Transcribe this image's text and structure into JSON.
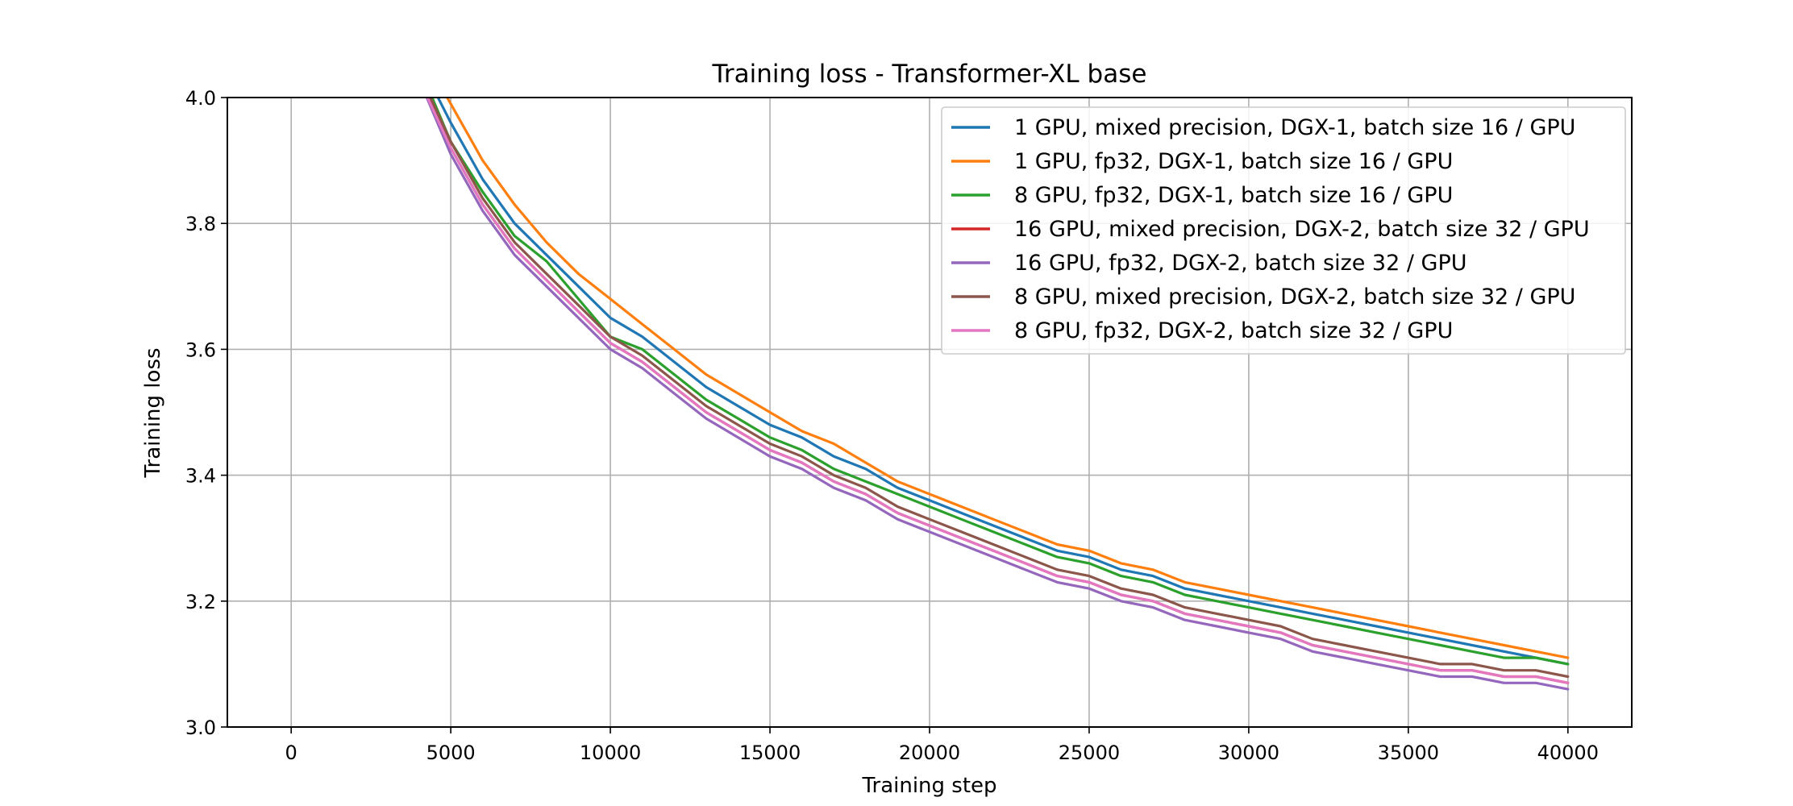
{
  "chart_data": {
    "type": "line",
    "title": "Training loss - Transformer-XL base",
    "xlabel": "Training step",
    "ylabel": "Training loss",
    "xlim": [
      -2000,
      42000
    ],
    "ylim": [
      3.0,
      4.0
    ],
    "xticks": [
      0,
      5000,
      10000,
      15000,
      20000,
      25000,
      30000,
      35000,
      40000
    ],
    "xtick_labels": [
      "0",
      "5000",
      "10000",
      "15000",
      "20000",
      "25000",
      "30000",
      "35000",
      "40000"
    ],
    "yticks": [
      3.0,
      3.2,
      3.4,
      3.6,
      3.8,
      4.0
    ],
    "ytick_labels": [
      "3.0",
      "3.2",
      "3.4",
      "3.6",
      "3.8",
      "4.0"
    ],
    "grid": true,
    "legend_position": "top-right",
    "x": [
      4000,
      5000,
      6000,
      7000,
      8000,
      9000,
      10000,
      11000,
      12000,
      13000,
      14000,
      15000,
      16000,
      17000,
      18000,
      19000,
      20000,
      21000,
      22000,
      23000,
      24000,
      25000,
      26000,
      27000,
      28000,
      29000,
      30000,
      31000,
      32000,
      33000,
      34000,
      35000,
      36000,
      37000,
      38000,
      39000,
      40000
    ],
    "series": [
      {
        "name": "1 GPU, mixed precision, DGX-1, batch size 16 / GPU",
        "color": "#1f77b4",
        "values": [
          4.06,
          3.96,
          3.87,
          3.8,
          3.75,
          3.7,
          3.65,
          3.62,
          3.58,
          3.54,
          3.51,
          3.48,
          3.46,
          3.43,
          3.41,
          3.38,
          3.36,
          3.34,
          3.32,
          3.3,
          3.28,
          3.27,
          3.25,
          3.24,
          3.22,
          3.21,
          3.2,
          3.19,
          3.18,
          3.17,
          3.16,
          3.15,
          3.14,
          3.13,
          3.12,
          3.11,
          3.1
        ]
      },
      {
        "name": "1 GPU, fp32, DGX-1, batch size 16 / GPU",
        "color": "#ff7f0e",
        "values": [
          4.08,
          3.99,
          3.9,
          3.83,
          3.77,
          3.72,
          3.68,
          3.64,
          3.6,
          3.56,
          3.53,
          3.5,
          3.47,
          3.45,
          3.42,
          3.39,
          3.37,
          3.35,
          3.33,
          3.31,
          3.29,
          3.28,
          3.26,
          3.25,
          3.23,
          3.22,
          3.21,
          3.2,
          3.19,
          3.18,
          3.17,
          3.16,
          3.15,
          3.14,
          3.13,
          3.12,
          3.11
        ]
      },
      {
        "name": "8 GPU, fp32, DGX-1, batch size 16 / GPU",
        "color": "#2ca02c",
        "values": [
          4.05,
          3.93,
          3.85,
          3.78,
          3.74,
          3.68,
          3.62,
          3.6,
          3.56,
          3.52,
          3.49,
          3.46,
          3.44,
          3.41,
          3.39,
          3.37,
          3.35,
          3.33,
          3.31,
          3.29,
          3.27,
          3.26,
          3.24,
          3.23,
          3.21,
          3.2,
          3.19,
          3.18,
          3.17,
          3.16,
          3.15,
          3.14,
          3.13,
          3.12,
          3.11,
          3.11,
          3.1
        ]
      },
      {
        "name": "16 GPU, mixed precision, DGX-2, batch size 32 / GPU",
        "color": "#d62728",
        "values": [
          4.04,
          3.92,
          3.83,
          3.76,
          3.71,
          3.66,
          3.61,
          3.58,
          3.54,
          3.5,
          3.47,
          3.44,
          3.42,
          3.39,
          3.37,
          3.34,
          3.32,
          3.3,
          3.28,
          3.26,
          3.24,
          3.23,
          3.21,
          3.2,
          3.18,
          3.17,
          3.16,
          3.15,
          3.13,
          3.12,
          3.11,
          3.1,
          3.09,
          3.09,
          3.08,
          3.08,
          3.07
        ]
      },
      {
        "name": "16 GPU, fp32, DGX-2, batch size 32 / GPU",
        "color": "#9467bd",
        "values": [
          4.03,
          3.91,
          3.82,
          3.75,
          3.7,
          3.65,
          3.6,
          3.57,
          3.53,
          3.49,
          3.46,
          3.43,
          3.41,
          3.38,
          3.36,
          3.33,
          3.31,
          3.29,
          3.27,
          3.25,
          3.23,
          3.22,
          3.2,
          3.19,
          3.17,
          3.16,
          3.15,
          3.14,
          3.12,
          3.11,
          3.1,
          3.09,
          3.08,
          3.08,
          3.07,
          3.07,
          3.06
        ]
      },
      {
        "name": "8 GPU, mixed precision, DGX-2, batch size 32 / GPU",
        "color": "#8c564b",
        "values": [
          4.04,
          3.93,
          3.84,
          3.77,
          3.72,
          3.67,
          3.62,
          3.59,
          3.55,
          3.51,
          3.48,
          3.45,
          3.43,
          3.4,
          3.38,
          3.35,
          3.33,
          3.31,
          3.29,
          3.27,
          3.25,
          3.24,
          3.22,
          3.21,
          3.19,
          3.18,
          3.17,
          3.16,
          3.14,
          3.13,
          3.12,
          3.11,
          3.1,
          3.1,
          3.09,
          3.09,
          3.08
        ]
      },
      {
        "name": "8 GPU, fp32, DGX-2, batch size 32 / GPU",
        "color": "#e377c2",
        "values": [
          4.03,
          3.92,
          3.83,
          3.76,
          3.71,
          3.66,
          3.61,
          3.58,
          3.54,
          3.5,
          3.47,
          3.44,
          3.42,
          3.39,
          3.37,
          3.34,
          3.32,
          3.3,
          3.28,
          3.26,
          3.24,
          3.23,
          3.21,
          3.2,
          3.18,
          3.17,
          3.16,
          3.15,
          3.13,
          3.12,
          3.11,
          3.1,
          3.09,
          3.09,
          3.08,
          3.08,
          3.07
        ]
      }
    ]
  }
}
